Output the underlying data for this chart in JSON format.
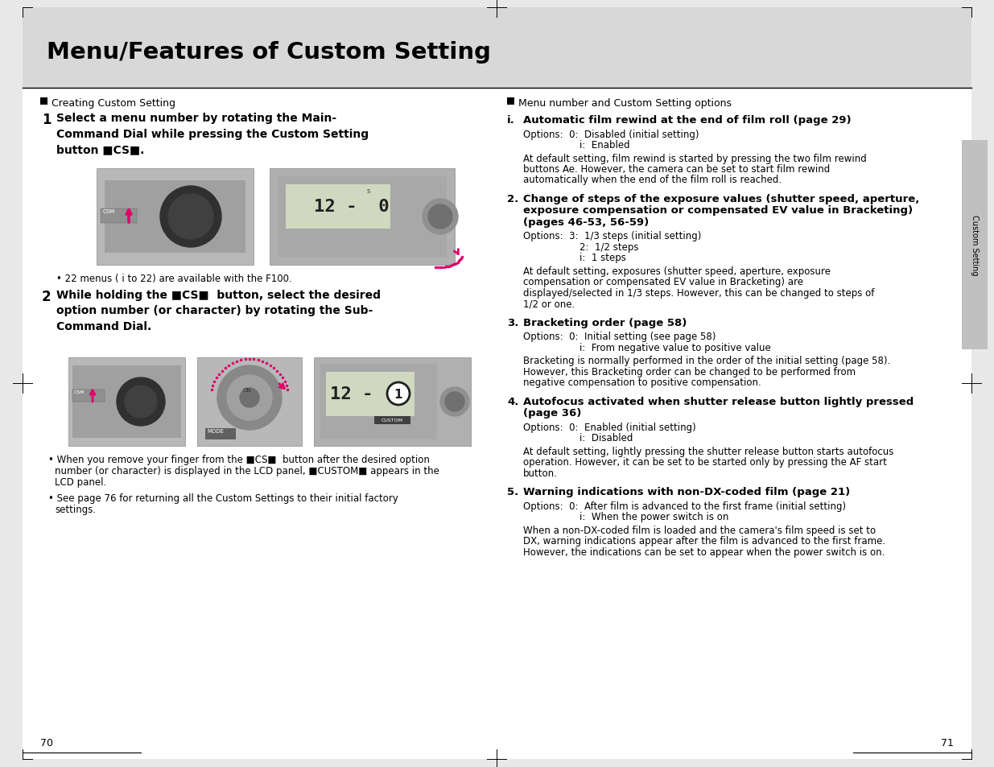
{
  "title": "Menu/Features of Custom Setting",
  "page_left": "70",
  "page_right": "71",
  "tab_text": "Custom Setting",
  "header_gray": "#d8d8d8",
  "tab_gray": "#c0c0c0",
  "white": "#ffffff",
  "black": "#000000",
  "img_gray": "#c8c8c8",
  "img_dark": "#888888",
  "pink": "#e0006a",
  "lcd_bg": "#d0d8c0",
  "left_header": "Creating Custom Setting",
  "right_header": "Menu number and Custom Setting options",
  "step1_bold": "Select a menu number by rotating the Main-\nCommand Dial while pressing the Custom Setting\nbutton ",
  "step2_bold": "While holding the   button, select the desired\noption number (or character) by rotating the Sub-\nCommand Dial.",
  "note1": "22 menus ( i to 22) are available with the F100.",
  "bullet1_pre": "When you remove your finger from the   button after the desired option\nnumber (or character) is displayed in the LCD panel,   appears in the\nLCD panel.",
  "bullet2": "See page 76 for returning all the Custom Settings to their initial factory\nsettings.",
  "items": [
    {
      "num": "i.",
      "head1": "Automatic film rewind at the end of film roll (page 29)",
      "head2": null,
      "head3": null,
      "opt1": "Options:  0:  Disabled (initial setting)",
      "opt2": "i:  Enabled",
      "opt3": null,
      "desc": "At default setting, film rewind is started by pressing the two film rewind\nbuttons Ae. However, the camera can be set to start film rewind\nautomatically when the end of the film roll is reached."
    },
    {
      "num": "2.",
      "head1": "Change of steps of the exposure values (shutter speed, aperture,",
      "head2": "exposure compensation or compensated EV value in Bracketing)",
      "head3": "(pages 46-53, 56-59)",
      "opt1": "Options:  3:  1/3 steps (initial setting)",
      "opt2": "2:  1/2 steps",
      "opt3": "i:  1 steps",
      "desc": "At default setting, exposures (shutter speed, aperture, exposure\ncompensation or compensated EV value in Bracketing) are\ndisplayed/selected in 1/3 steps. However, this can be changed to steps of\n1/2 or one."
    },
    {
      "num": "3.",
      "head1": "Bracketing order (page 58)",
      "head2": null,
      "head3": null,
      "opt1": "Options:  0:  Initial setting (see page 58)",
      "opt2": "i:  From negative value to positive value",
      "opt3": null,
      "desc": "Bracketing is normally performed in the order of the initial setting (page 58).\nHowever, this Bracketing order can be changed to be performed from\nnegative compensation to positive compensation."
    },
    {
      "num": "4.",
      "head1": "Autofocus activated when shutter release button lightly pressed",
      "head2": "(page 36)",
      "head3": null,
      "opt1": "Options:  0:  Enabled (initial setting)",
      "opt2": "i:  Disabled",
      "opt3": null,
      "desc": "At default setting, lightly pressing the shutter release button starts autofocus\noperation. However, it can be set to be started only by pressing the AF start\nbutton."
    },
    {
      "num": "5.",
      "head1": "Warning indications with non-DX-coded film (page 21)",
      "head2": null,
      "head3": null,
      "opt1": "Options:  0:  After film is advanced to the first frame (initial setting)",
      "opt2": "i:  When the power switch is on",
      "opt3": null,
      "desc": "When a non-DX-coded film is loaded and the camera's film speed is set to\nDX, warning indications appear after the film is advanced to the first frame.\nHowever, the indications can be set to appear when the power switch is on."
    }
  ]
}
